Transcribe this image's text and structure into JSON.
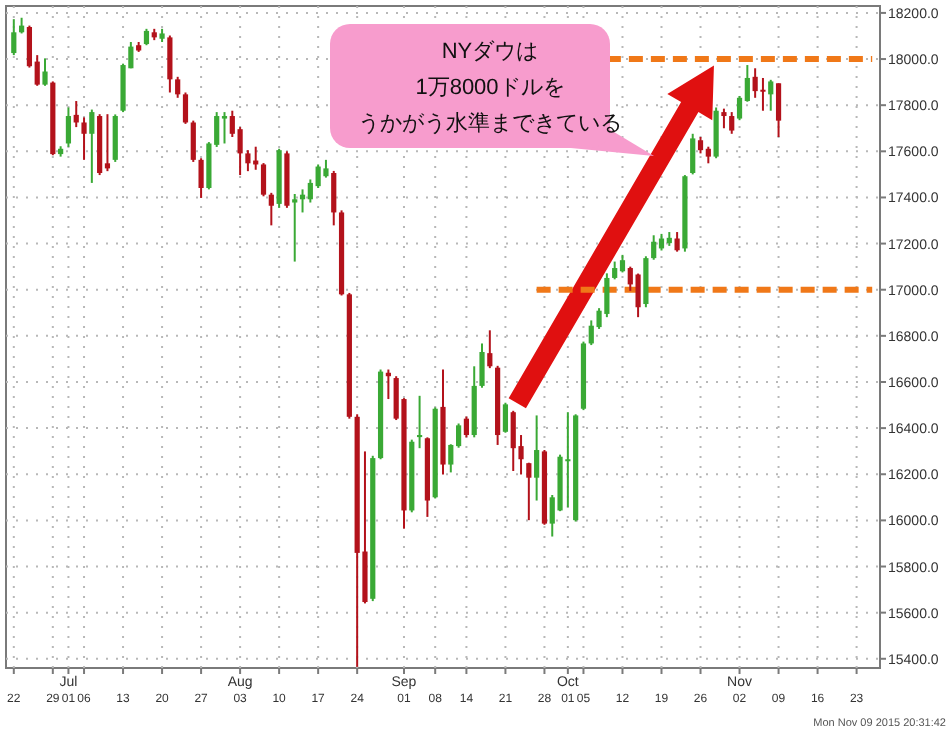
{
  "chart_data": {
    "type": "candlestick",
    "categories": [
      "22",
      null,
      null,
      null,
      null,
      "29",
      null,
      "Jul\n01",
      null,
      "06",
      null,
      null,
      null,
      null,
      "13",
      null,
      null,
      null,
      null,
      "20",
      null,
      null,
      null,
      null,
      "27",
      null,
      null,
      null,
      null,
      "Aug\n03",
      null,
      null,
      null,
      null,
      "10",
      null,
      null,
      null,
      null,
      "17",
      null,
      null,
      null,
      null,
      "24",
      null,
      null,
      null,
      null,
      null,
      "Sep\n01",
      null,
      null,
      null,
      "08",
      null,
      null,
      null,
      "14",
      null,
      null,
      null,
      null,
      "21",
      null,
      null,
      null,
      null,
      "28",
      null,
      null,
      "Oct\n01",
      null,
      "05",
      null,
      null,
      null,
      null,
      "12",
      null,
      null,
      null,
      null,
      "19",
      null,
      null,
      null,
      null,
      "26",
      null,
      null,
      null,
      null,
      "Nov\n02",
      null,
      null,
      null,
      null,
      "09",
      null,
      null,
      null,
      null,
      "16",
      null,
      null,
      null,
      null,
      "23",
      null,
      null
    ],
    "ohlc": [
      [
        18026,
        18173,
        18017,
        18116
      ],
      [
        18116,
        18179,
        18111,
        18145
      ],
      [
        18139,
        18145,
        17963,
        17969
      ],
      [
        17989,
        18017,
        17884,
        17889
      ],
      [
        17889,
        18003,
        17884,
        17946
      ],
      [
        17898,
        17903,
        17583,
        17588
      ],
      [
        17588,
        17622,
        17577,
        17611
      ],
      [
        17634,
        17790,
        17619,
        17753
      ],
      [
        17758,
        17818,
        17705,
        17725
      ],
      [
        17725,
        17747,
        17563,
        17676
      ],
      [
        17676,
        17781,
        17463,
        17770
      ],
      [
        17753,
        17761,
        17497,
        17506
      ],
      [
        17548,
        17761,
        17514,
        17526
      ],
      [
        17563,
        17760,
        17554,
        17753
      ],
      [
        17776,
        17980,
        17770,
        17974
      ],
      [
        17960,
        18074,
        17960,
        18054
      ],
      [
        18060,
        18074,
        18031,
        18037
      ],
      [
        18065,
        18131,
        18060,
        18122
      ],
      [
        18116,
        18131,
        18082,
        18094
      ],
      [
        18088,
        18131,
        18074,
        18111
      ],
      [
        18094,
        18102,
        17855,
        17912
      ],
      [
        17912,
        17923,
        17832,
        17847
      ],
      [
        17847,
        17855,
        17719,
        17725
      ],
      [
        17725,
        17733,
        17554,
        17563
      ],
      [
        17563,
        17570,
        17398,
        17441
      ],
      [
        17441,
        17640,
        17435,
        17634
      ],
      [
        17628,
        17770,
        17619,
        17753
      ],
      [
        17742,
        17770,
        17634,
        17753
      ],
      [
        17753,
        17776,
        17662,
        17676
      ],
      [
        17696,
        17705,
        17497,
        17591
      ],
      [
        17591,
        17605,
        17514,
        17548
      ],
      [
        17560,
        17620,
        17520,
        17543
      ],
      [
        17543,
        17549,
        17405,
        17412
      ],
      [
        17412,
        17420,
        17279,
        17364
      ],
      [
        17372,
        17611,
        17355,
        17605
      ],
      [
        17591,
        17600,
        17355,
        17364
      ],
      [
        17378,
        17415,
        17122,
        17392
      ],
      [
        17392,
        17435,
        17335,
        17412
      ],
      [
        17392,
        17478,
        17378,
        17463
      ],
      [
        17449,
        17543,
        17441,
        17534
      ],
      [
        17492,
        17563,
        17486,
        17526
      ],
      [
        17506,
        17515,
        17279,
        17335
      ],
      [
        17335,
        17344,
        16975,
        16980
      ],
      [
        16980,
        16986,
        16441,
        16449
      ],
      [
        16449,
        16460,
        15365,
        15859
      ],
      [
        15865,
        16299,
        15640,
        15646
      ],
      [
        15660,
        16280,
        15650,
        16270
      ],
      [
        16270,
        16654,
        16265,
        16645
      ],
      [
        16640,
        16654,
        16526,
        16625
      ],
      [
        16617,
        16625,
        16435,
        16441
      ],
      [
        16526,
        16530,
        15964,
        16043
      ],
      [
        16043,
        16350,
        16035,
        16341
      ],
      [
        16361,
        16540,
        16313,
        16370
      ],
      [
        16356,
        16360,
        16015,
        16086
      ],
      [
        16100,
        16490,
        16095,
        16484
      ],
      [
        16492,
        16654,
        16199,
        16242
      ],
      [
        16242,
        16330,
        16208,
        16327
      ],
      [
        16322,
        16420,
        16315,
        16412
      ],
      [
        16441,
        16450,
        16360,
        16370
      ],
      [
        16370,
        16668,
        16360,
        16583
      ],
      [
        16583,
        16767,
        16575,
        16730
      ],
      [
        16725,
        16824,
        16660,
        16668
      ],
      [
        16662,
        16670,
        16327,
        16370
      ],
      [
        16384,
        16510,
        16380,
        16503
      ],
      [
        16469,
        16475,
        16214,
        16313
      ],
      [
        16322,
        16370,
        16199,
        16265
      ],
      [
        16248,
        16250,
        16001,
        16185
      ],
      [
        16185,
        16455,
        16086,
        16305
      ],
      [
        16299,
        16305,
        15981,
        15986
      ],
      [
        15986,
        16110,
        15930,
        16100
      ],
      [
        16043,
        16285,
        16040,
        16276
      ],
      [
        16262,
        16469,
        16057,
        16265
      ],
      [
        16001,
        16460,
        15995,
        16455
      ],
      [
        16484,
        16775,
        16478,
        16767
      ],
      [
        16767,
        16867,
        16760,
        16844
      ],
      [
        16838,
        16920,
        16830,
        16909
      ],
      [
        16895,
        17071,
        16881,
        17051
      ],
      [
        17051,
        17122,
        17045,
        17094
      ],
      [
        17080,
        17151,
        17075,
        17128
      ],
      [
        17094,
        17100,
        16995,
        17023
      ],
      [
        17066,
        17070,
        16881,
        16924
      ],
      [
        16938,
        17145,
        16924,
        17137
      ],
      [
        17137,
        17236,
        17130,
        17208
      ],
      [
        17179,
        17242,
        17170,
        17222
      ],
      [
        17202,
        17250,
        17190,
        17225
      ],
      [
        17222,
        17250,
        17165,
        17171
      ],
      [
        17179,
        17497,
        17165,
        17492
      ],
      [
        17506,
        17676,
        17500,
        17656
      ],
      [
        17648,
        17662,
        17591,
        17605
      ],
      [
        17611,
        17620,
        17548,
        17577
      ],
      [
        17577,
        17790,
        17570,
        17776
      ],
      [
        17770,
        17785,
        17700,
        17753
      ],
      [
        17753,
        17770,
        17676,
        17690
      ],
      [
        17742,
        17840,
        17735,
        17832
      ],
      [
        17818,
        17974,
        17815,
        17918
      ],
      [
        17923,
        17960,
        17832,
        17861
      ],
      [
        17867,
        17918,
        17776,
        17861
      ],
      [
        17847,
        17910,
        17776,
        17903
      ],
      [
        17895,
        17895,
        17662,
        17733
      ],
      null,
      null,
      null,
      null,
      null,
      null,
      null,
      null,
      null,
      null,
      null,
      null
    ],
    "colors": [
      "#3aa935",
      "#3aa935",
      "#b3121b",
      "#b3121b",
      "#3aa935",
      "#b3121b",
      "#3aa935",
      "#3aa935",
      "#b3121b",
      "#b3121b",
      "#3aa935",
      "#b3121b",
      "#b3121b",
      "#3aa935",
      "#3aa935",
      "#3aa935",
      "#b3121b",
      "#3aa935",
      "#b3121b",
      "#3aa935",
      "#b3121b",
      "#b3121b",
      "#b3121b",
      "#b3121b",
      "#b3121b",
      "#3aa935",
      "#3aa935",
      "#3aa935",
      "#b3121b",
      "#b3121b",
      "#b3121b",
      "#b3121b",
      "#b3121b",
      "#b3121b",
      "#3aa935",
      "#b3121b",
      "#3aa935",
      "#3aa935",
      "#3aa935",
      "#3aa935",
      "#3aa935",
      "#b3121b",
      "#b3121b",
      "#b3121b",
      "#b3121b",
      "#b3121b",
      "#3aa935",
      "#3aa935",
      "#b3121b",
      "#b3121b",
      "#b3121b",
      "#3aa935",
      "#3aa935",
      "#b3121b",
      "#3aa935",
      "#b3121b",
      "#3aa935",
      "#3aa935",
      "#b3121b",
      "#3aa935",
      "#3aa935",
      "#b3121b",
      "#b3121b",
      "#3aa935",
      "#b3121b",
      "#b3121b",
      "#b3121b",
      "#3aa935",
      "#b3121b",
      "#3aa935",
      "#3aa935",
      "#3aa935",
      "#3aa935",
      "#3aa935",
      "#3aa935",
      "#3aa935",
      "#3aa935",
      "#3aa935",
      "#3aa935",
      "#b3121b",
      "#b3121b",
      "#3aa935",
      "#3aa935",
      "#3aa935",
      "#3aa935",
      "#b3121b",
      "#3aa935",
      "#3aa935",
      "#b3121b",
      "#b3121b",
      "#3aa935",
      "#b3121b",
      "#b3121b",
      "#3aa935",
      "#3aa935",
      "#b3121b",
      "#b3121b",
      "#3aa935",
      "#b3121b",
      null,
      null,
      null,
      null,
      null,
      null,
      null,
      null,
      null,
      null,
      null,
      null
    ],
    "series": [
      {
        "type": "line",
        "color": "#f07818",
        "line_style": "dashed",
        "values": [
          null,
          null,
          null,
          null,
          null,
          null,
          null,
          null,
          null,
          null,
          null,
          null,
          null,
          null,
          null,
          null,
          null,
          null,
          null,
          null,
          null,
          null,
          null,
          null,
          null,
          null,
          null,
          null,
          null,
          null,
          null,
          null,
          null,
          null,
          null,
          null,
          null,
          null,
          null,
          null,
          null,
          null,
          null,
          null,
          null,
          null,
          null,
          null,
          null,
          null,
          null,
          null,
          null,
          null,
          null,
          null,
          null,
          null,
          null,
          null,
          null,
          null,
          null,
          null,
          null,
          null,
          null,
          null,
          null,
          null,
          null,
          null,
          null,
          null,
          null,
          null,
          18000,
          18000,
          18000,
          18000,
          18000,
          18000,
          18000,
          18000,
          18000,
          18000,
          18000,
          18000,
          18000,
          18000,
          18000,
          18000,
          18000,
          18000,
          18000,
          18000,
          18000,
          18000,
          18000,
          18000,
          18000,
          18000,
          18000,
          18000,
          18000,
          18000,
          18000,
          18000,
          18000,
          18000,
          18000
        ]
      },
      {
        "type": "line",
        "color": "#f07818",
        "line_style": "dashed",
        "values": [
          null,
          null,
          null,
          null,
          null,
          null,
          null,
          null,
          null,
          null,
          null,
          null,
          null,
          null,
          null,
          null,
          null,
          null,
          null,
          null,
          null,
          null,
          null,
          null,
          null,
          null,
          null,
          null,
          null,
          null,
          null,
          null,
          null,
          null,
          null,
          null,
          null,
          null,
          null,
          null,
          null,
          null,
          null,
          null,
          null,
          null,
          null,
          null,
          null,
          null,
          null,
          null,
          null,
          null,
          null,
          null,
          null,
          null,
          null,
          null,
          null,
          null,
          null,
          null,
          null,
          null,
          null,
          17000,
          17000,
          17000,
          17000,
          17000,
          17000,
          17000,
          17000,
          17000,
          17000,
          17000,
          17000,
          17000,
          17000,
          17000,
          17000,
          17000,
          17000,
          17000,
          17000,
          17000,
          17000,
          17000,
          17000,
          17000,
          17000,
          17000,
          17000,
          17000,
          17000,
          17000,
          17000,
          17000,
          17000,
          17000,
          17000,
          17000,
          17000,
          17000,
          17000,
          17000,
          17000,
          17000,
          17000
        ]
      }
    ],
    "ylim": [
      15360,
      18230
    ],
    "yticks": [
      {
        "value": 15400,
        "label": "15400.0"
      },
      {
        "value": 15600,
        "label": "15600.0"
      },
      {
        "value": 15800,
        "label": "15800.0"
      },
      {
        "value": 16000,
        "label": "16000.0"
      },
      {
        "value": 16200,
        "label": "16200.0"
      },
      {
        "value": 16400,
        "label": "16400.0"
      },
      {
        "value": 16600,
        "label": "16600.0"
      },
      {
        "value": 16800,
        "label": "16800.0"
      },
      {
        "value": 17000,
        "label": "17000.0"
      },
      {
        "value": 17200,
        "label": "17200.0"
      },
      {
        "value": 17400,
        "label": "17400.0"
      },
      {
        "value": 17600,
        "label": "17600.0"
      },
      {
        "value": 17800,
        "label": "17800.0"
      },
      {
        "value": 18000,
        "label": "18000.0"
      },
      {
        "value": 18200,
        "label": "18200.0"
      }
    ],
    "grid": true,
    "annotations": [
      "NYダウは",
      "1万8000ドルを",
      "うかがう水準まできている",
      "Mon Nov 09 2015 20:31:42"
    ]
  }
}
